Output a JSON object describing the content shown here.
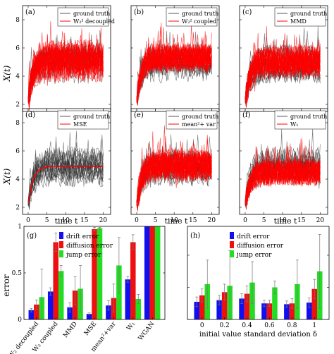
{
  "figure": {
    "ylabel_top": "X(t)",
    "xlabel_top": "time t",
    "ylabel_bottom": "error"
  },
  "chart_data": [
    {
      "type": "line",
      "panel": "(a)",
      "legend": [
        "ground truth",
        "W₂² decoupled"
      ],
      "xlim": [
        -1.5,
        22
      ],
      "ylim": [
        1.5,
        9
      ],
      "xticks": [
        0,
        5,
        10,
        15,
        20
      ],
      "yticks": [
        2,
        4,
        6,
        8
      ],
      "ytick_labels": [
        "2",
        "4",
        "6",
        "8"
      ],
      "xtick_labels": [],
      "truth_mean": 4.9,
      "red_mean": 5.1,
      "red_spread": 1.3,
      "grid": false
    },
    {
      "type": "line",
      "panel": "(b)",
      "legend": [
        "ground truth",
        "W₂² coupled"
      ],
      "xlim": [
        -1.5,
        22
      ],
      "ylim": [
        1.5,
        9
      ],
      "xticks": [
        0,
        5,
        10,
        15,
        20
      ],
      "yticks": [
        2,
        4,
        6,
        8
      ],
      "ytick_labels": [],
      "xtick_labels": [],
      "truth_mean": 4.9,
      "red_mean": 5.3,
      "red_spread": 0.6,
      "grid": false
    },
    {
      "type": "line",
      "panel": "(c)",
      "legend": [
        "ground truth",
        "MMD"
      ],
      "xlim": [
        -1.5,
        22
      ],
      "ylim": [
        1.5,
        9
      ],
      "xticks": [
        0,
        5,
        10,
        15,
        20
      ],
      "yticks": [
        2,
        4,
        6,
        8
      ],
      "ytick_labels": [],
      "xtick_labels": [],
      "truth_mean": 4.9,
      "red_mean": 5.0,
      "red_spread": 0.9,
      "grid": false
    },
    {
      "type": "line",
      "panel": "(d)",
      "legend": [
        "ground truth",
        "MSE"
      ],
      "xlim": [
        -1.5,
        22
      ],
      "ylim": [
        1.5,
        9
      ],
      "xticks": [
        0,
        5,
        10,
        15,
        20
      ],
      "yticks": [
        2,
        4,
        6,
        8
      ],
      "ytick_labels": [
        "2",
        "4",
        "6",
        "8"
      ],
      "xtick_labels": [
        "0",
        "5",
        "10",
        "15",
        "20"
      ],
      "truth_mean": 4.9,
      "red_mean": 4.9,
      "red_spread": 0.0,
      "grid": false
    },
    {
      "type": "line",
      "panel": "(e)",
      "legend": [
        "ground truth",
        "mean²+ var"
      ],
      "xlim": [
        -1.5,
        22
      ],
      "ylim": [
        1.5,
        9
      ],
      "xticks": [
        0,
        5,
        10,
        15,
        20
      ],
      "yticks": [
        2,
        4,
        6,
        8
      ],
      "ytick_labels": [],
      "xtick_labels": [
        "0",
        "5",
        "10",
        "15",
        "20"
      ],
      "truth_mean": 4.9,
      "red_mean": 5.0,
      "red_spread": 0.9,
      "grid": false
    },
    {
      "type": "line",
      "panel": "(f)",
      "legend": [
        "ground truth",
        "W₁"
      ],
      "xlim": [
        -1.5,
        22
      ],
      "ylim": [
        1.5,
        9
      ],
      "xticks": [
        0,
        5,
        10,
        15,
        20
      ],
      "yticks": [
        2,
        4,
        6,
        8
      ],
      "ytick_labels": [],
      "xtick_labels": [
        "0",
        "5",
        "10",
        "15",
        "20"
      ],
      "truth_mean": 4.9,
      "red_mean": 4.5,
      "red_spread": 0.5,
      "grid": false
    },
    {
      "type": "bar",
      "panel": "(g)",
      "categories": [
        "W₂ decoupled",
        "W₂ coupled",
        "MMD",
        "MSE",
        "mean²+var",
        "W₁",
        "WGAN"
      ],
      "series": [
        {
          "name": "drift error",
          "color": "#1010ee",
          "values": [
            0.1,
            0.3,
            0.13,
            0.06,
            0.15,
            0.43,
            1.0
          ],
          "errors": [
            0.02,
            0.04,
            0.05,
            0.01,
            0.05,
            0.03,
            0
          ]
        },
        {
          "name": "diffusion error",
          "color": "#ee1010",
          "values": [
            0.16,
            0.83,
            0.31,
            0.97,
            0.23,
            0.83,
            1.0
          ],
          "errors": [
            0.05,
            0.1,
            0.15,
            0.02,
            0.15,
            0.08,
            0
          ]
        },
        {
          "name": "jump error",
          "color": "#22dd22",
          "values": [
            0.24,
            0.52,
            0.33,
            0.98,
            0.58,
            0.22,
            1.0
          ],
          "errors": [
            0.3,
            0.06,
            0.25,
            0.01,
            0.3,
            0.05,
            0
          ]
        }
      ],
      "ylim": [
        0,
        1
      ],
      "yticks": [
        0,
        0.5,
        1
      ],
      "ytick_labels": [
        "0",
        "0.5",
        "1"
      ],
      "legend_position": "top-center",
      "grid": false
    },
    {
      "type": "bar",
      "panel": "(h)",
      "categories": [
        "0",
        "0.2",
        "0.4",
        "0.6",
        "0.8",
        "1"
      ],
      "xlabel": "initial value standard deviation δ",
      "series": [
        {
          "name": "drift error",
          "color": "#1010ee",
          "values": [
            0.11,
            0.12,
            0.13,
            0.1,
            0.095,
            0.105
          ],
          "errors": [
            0.03,
            0.03,
            0.03,
            0.02,
            0.02,
            0.03
          ]
        },
        {
          "name": "diffusion error",
          "color": "#ee1010",
          "values": [
            0.15,
            0.17,
            0.16,
            0.1,
            0.1,
            0.19
          ],
          "errors": [
            0.04,
            0.05,
            0.05,
            0.02,
            0.03,
            0.06
          ]
        },
        {
          "name": "jump error",
          "color": "#22dd22",
          "values": [
            0.22,
            0.21,
            0.23,
            0.2,
            0.22,
            0.3
          ],
          "errors": [
            0.15,
            0.22,
            0.13,
            0.04,
            0.15,
            0.23
          ]
        }
      ],
      "ylim": [
        0,
        0.58
      ],
      "yticks": [
        0,
        0.2,
        0.4
      ],
      "ytick_labels": [],
      "legend_position": "top-center",
      "grid": false
    }
  ]
}
